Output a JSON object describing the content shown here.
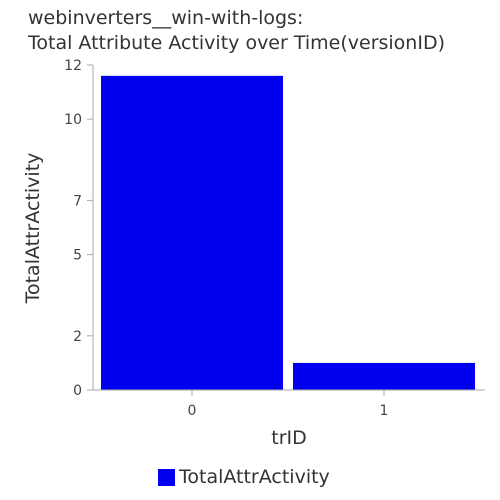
{
  "colors": {
    "bar": "#0000ee",
    "axis": "#aaaaaa",
    "text": "#333333"
  },
  "chart_data": {
    "type": "bar",
    "title": "webinverters__win-with-logs:",
    "subtitle": "Total Attribute Activity over Time(versionID)",
    "xlabel": "trID",
    "ylabel": "TotalAttrActivity",
    "categories": [
      "0",
      "1"
    ],
    "series": [
      {
        "name": "TotalAttrActivity",
        "values": [
          11.6,
          1.0
        ]
      }
    ],
    "ylim": [
      0,
      12
    ],
    "yticks": [
      0,
      2,
      5,
      7,
      10,
      12
    ],
    "ytick_labels": [
      "0",
      "2",
      "5",
      "7",
      "10",
      "12"
    ],
    "grid": false,
    "legend": "bottom"
  }
}
